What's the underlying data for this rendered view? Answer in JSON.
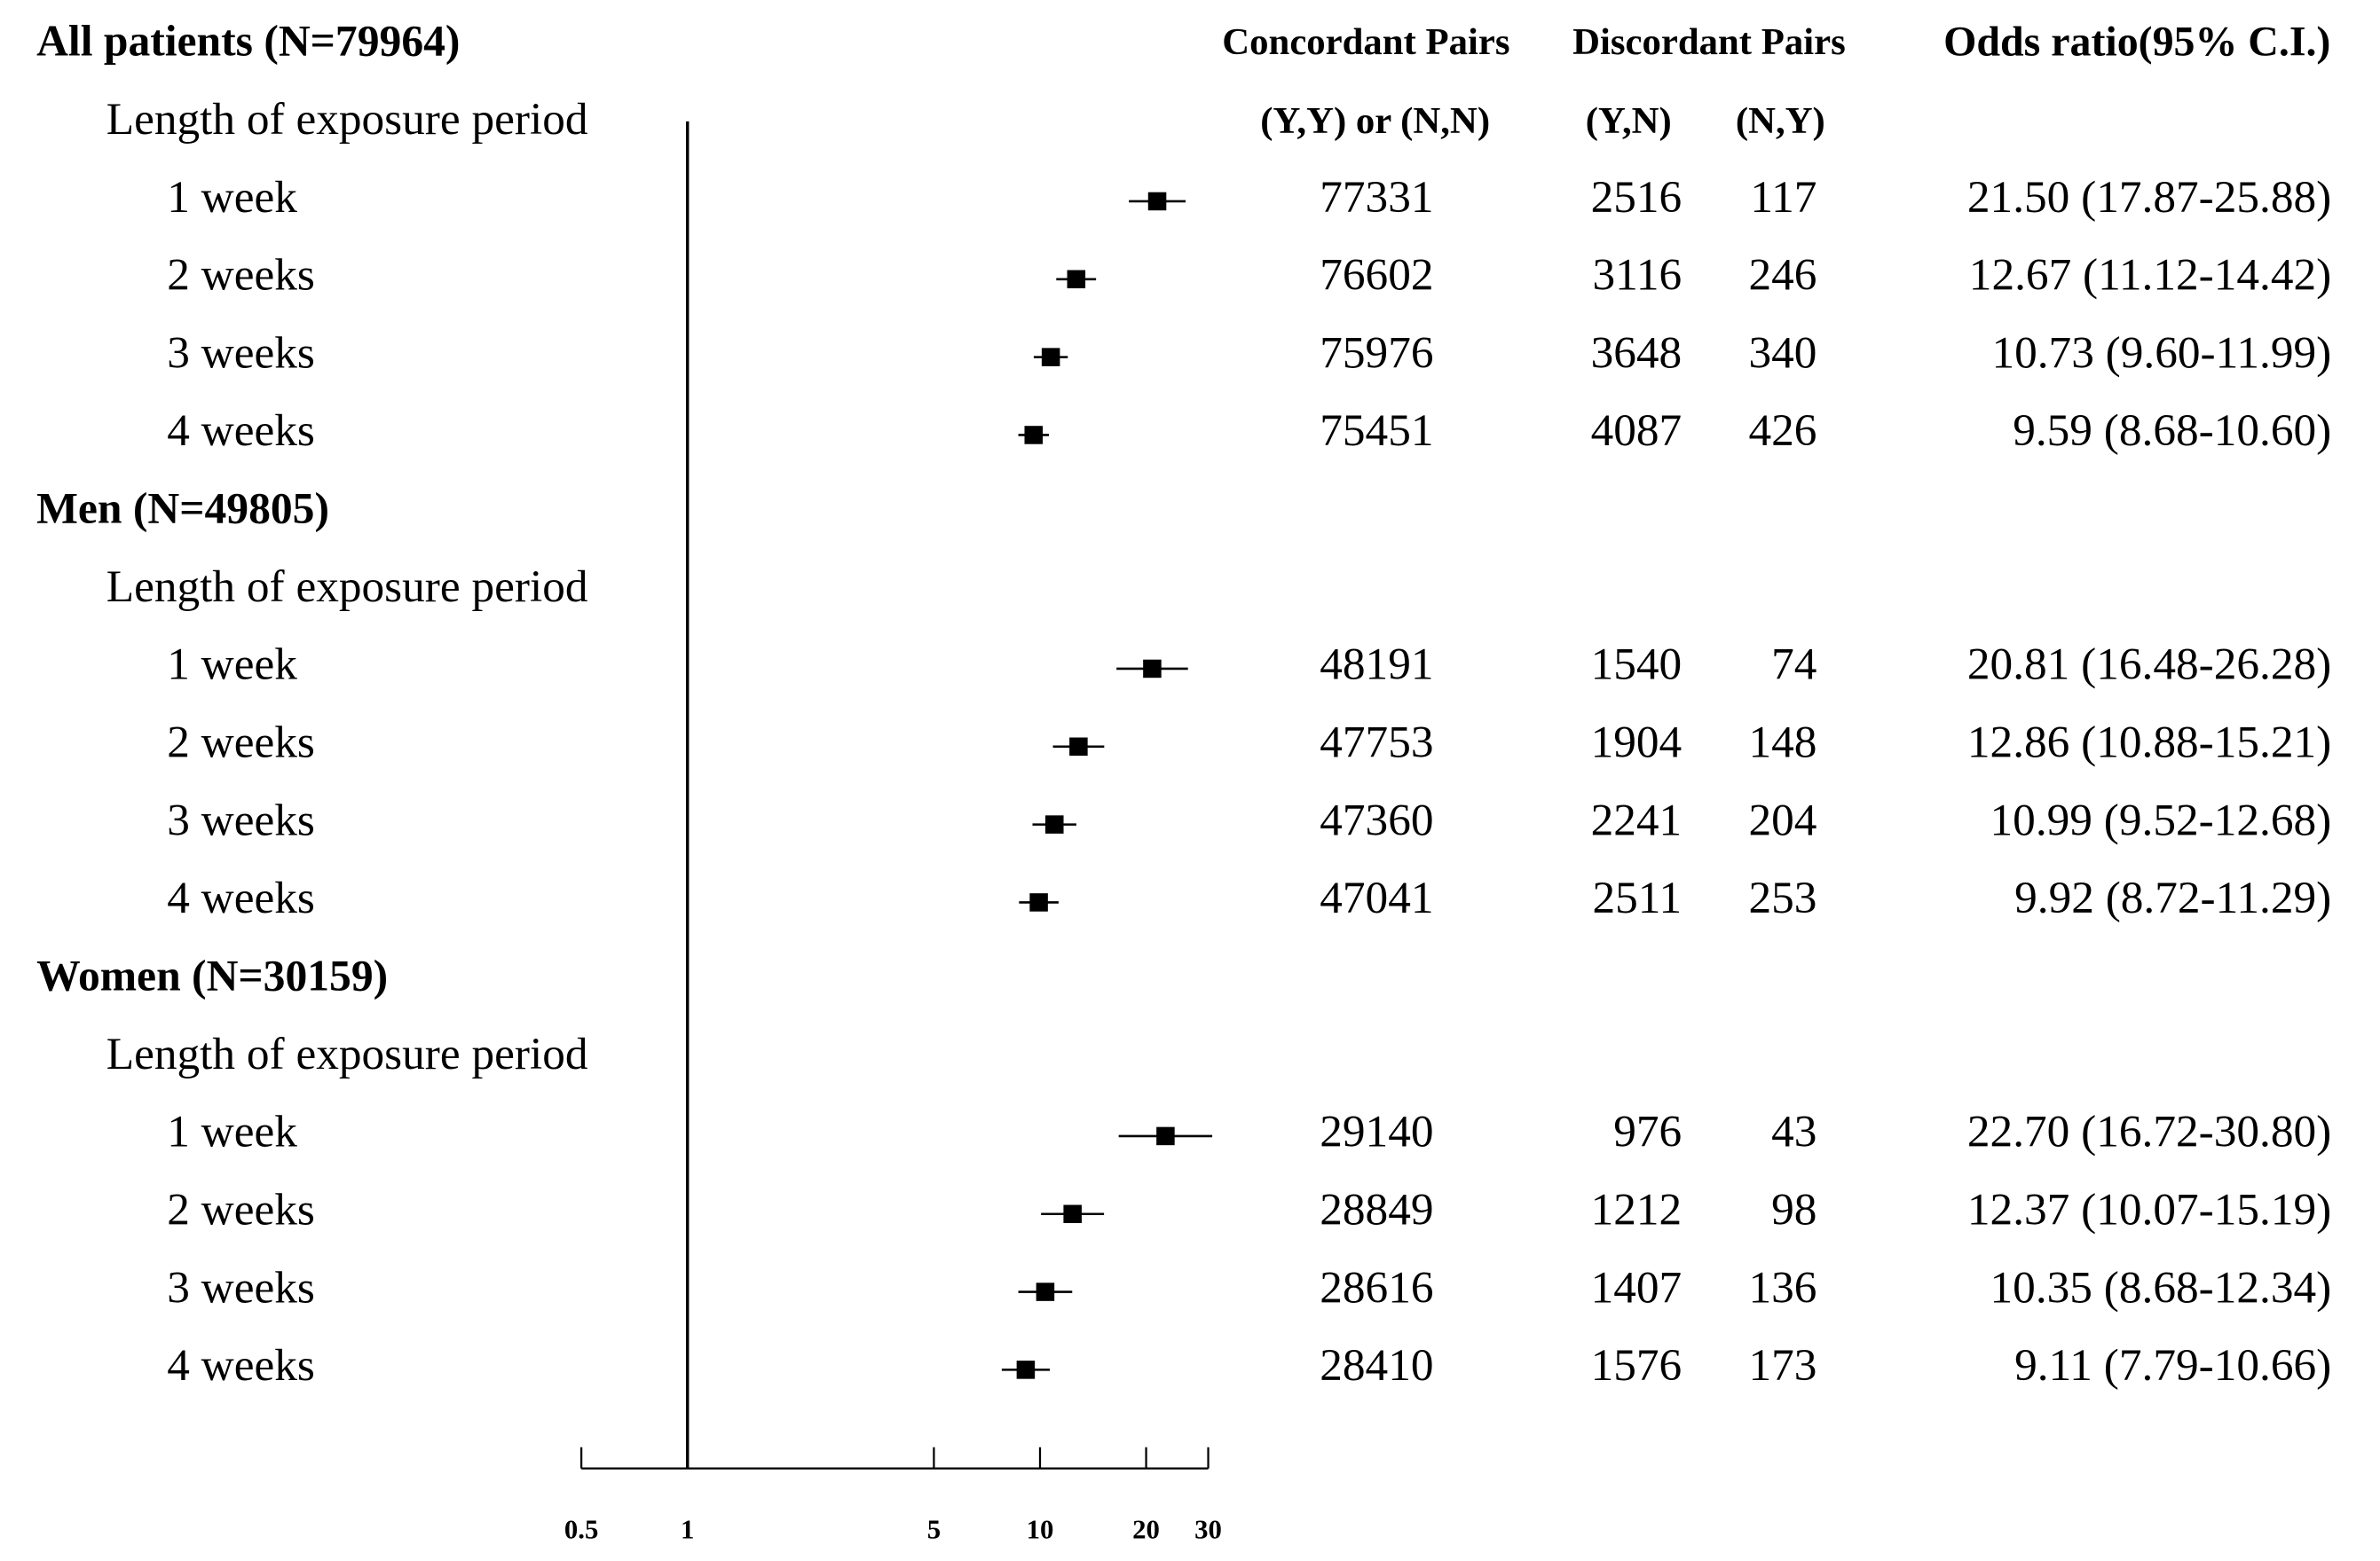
{
  "chart_data": {
    "type": "forest",
    "log_x": true,
    "xlim": [
      0.5,
      30
    ],
    "xticks": [
      0.5,
      1,
      5,
      10,
      20,
      30
    ],
    "reference_line": 1,
    "color": "#000000",
    "headers": {
      "concordant": "Concordant Pairs",
      "discordant": "Discordant Pairs",
      "odds_ratio": "Odds ratio(95% C.I.)",
      "yy_nn": "(Y,Y) or (N,N)",
      "yn": "(Y,N)",
      "ny": "(N,Y)"
    },
    "groups": [
      {
        "title": "All patients (N=79964)",
        "subtitle": "Length of exposure period",
        "rows": [
          {
            "label": "1 week",
            "or": 21.5,
            "lower": 17.87,
            "upper": 25.88,
            "or_label": "21.50 (17.87-25.88)",
            "concordant": 77331,
            "yn": 2516,
            "ny": 117
          },
          {
            "label": "2 weeks",
            "or": 12.67,
            "lower": 11.12,
            "upper": 14.42,
            "or_label": "12.67 (11.12-14.42)",
            "concordant": 76602,
            "yn": 3116,
            "ny": 246
          },
          {
            "label": "3 weeks",
            "or": 10.73,
            "lower": 9.6,
            "upper": 11.99,
            "or_label": "10.73 (9.60-11.99)",
            "concordant": 75976,
            "yn": 3648,
            "ny": 340
          },
          {
            "label": "4 weeks",
            "or": 9.59,
            "lower": 8.68,
            "upper": 10.6,
            "or_label": "9.59 (8.68-10.60)",
            "concordant": 75451,
            "yn": 4087,
            "ny": 426
          }
        ]
      },
      {
        "title": "Men (N=49805)",
        "subtitle": "Length of exposure period",
        "rows": [
          {
            "label": "1 week",
            "or": 20.81,
            "lower": 16.48,
            "upper": 26.28,
            "or_label": "20.81 (16.48-26.28)",
            "concordant": 48191,
            "yn": 1540,
            "ny": 74
          },
          {
            "label": "2 weeks",
            "or": 12.86,
            "lower": 10.88,
            "upper": 15.21,
            "or_label": "12.86 (10.88-15.21)",
            "concordant": 47753,
            "yn": 1904,
            "ny": 148
          },
          {
            "label": "3 weeks",
            "or": 10.99,
            "lower": 9.52,
            "upper": 12.68,
            "or_label": "10.99 (9.52-12.68)",
            "concordant": 47360,
            "yn": 2241,
            "ny": 204
          },
          {
            "label": "4 weeks",
            "or": 9.92,
            "lower": 8.72,
            "upper": 11.29,
            "or_label": "9.92 (8.72-11.29)",
            "concordant": 47041,
            "yn": 2511,
            "ny": 253
          }
        ]
      },
      {
        "title": "Women (N=30159)",
        "subtitle": "Length of exposure period",
        "rows": [
          {
            "label": "1 week",
            "or": 22.7,
            "lower": 16.72,
            "upper": 30.8,
            "or_label": "22.70 (16.72-30.80)",
            "concordant": 29140,
            "yn": 976,
            "ny": 43
          },
          {
            "label": "2 weeks",
            "or": 12.37,
            "lower": 10.07,
            "upper": 15.19,
            "or_label": "12.37 (10.07-15.19)",
            "concordant": 28849,
            "yn": 1212,
            "ny": 98
          },
          {
            "label": "3 weeks",
            "or": 10.35,
            "lower": 8.68,
            "upper": 12.34,
            "or_label": "10.35 (8.68-12.34)",
            "concordant": 28616,
            "yn": 1407,
            "ny": 136
          },
          {
            "label": "4 weeks",
            "or": 9.11,
            "lower": 7.79,
            "upper": 10.66,
            "or_label": "9.11 (7.79-10.66)",
            "concordant": 28410,
            "yn": 1576,
            "ny": 173
          }
        ]
      }
    ]
  }
}
